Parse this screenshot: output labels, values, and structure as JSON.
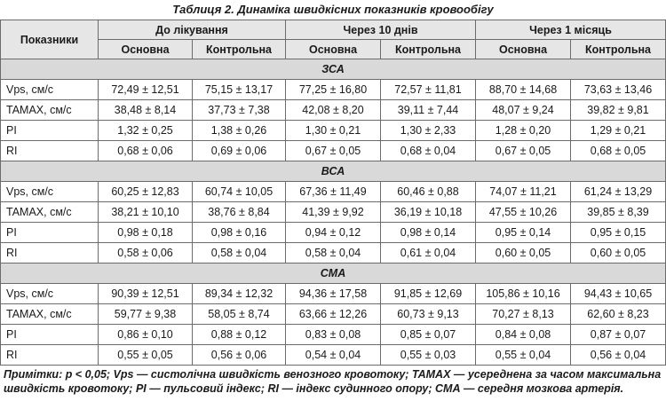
{
  "caption": "Таблиця 2. Динаміка швидкісних показників кровообігу",
  "header": {
    "indicator": "Показники",
    "periods": [
      "До лікування",
      "Через 10 днів",
      "Через 1 місяць"
    ],
    "groups": [
      "Основна",
      "Контрольна",
      "Основна",
      "Контрольна",
      "Основна",
      "Контрольна"
    ]
  },
  "sections": [
    {
      "title": "ЗСА",
      "rows": [
        {
          "label": "Vps, см/с",
          "values": [
            "72,49 ± 12,51",
            "75,15 ± 13,17",
            "77,25 ± 16,80",
            "72,57 ± 11,81",
            "88,70 ± 14,68",
            "73,63 ± 13,46"
          ]
        },
        {
          "label": "TAMAX, см/с",
          "values": [
            "38,48 ± 8,14",
            "37,73 ± 7,38",
            "42,08 ± 8,20",
            "39,11 ± 7,44",
            "48,07 ± 9,24",
            "39,82 ± 9,81"
          ]
        },
        {
          "label": "PI",
          "values": [
            "1,32 ± 0,25",
            "1,38 ± 0,26",
            "1,30 ± 0,21",
            "1,30 ± 2,33",
            "1,28 ± 0,20",
            "1,29 ± 0,21"
          ]
        },
        {
          "label": "RI",
          "values": [
            "0,68 ± 0,06",
            "0,69 ± 0,06",
            "0,67 ± 0,05",
            "0,68 ± 0,04",
            "0,67 ± 0,05",
            "0,68 ± 0,05"
          ]
        }
      ]
    },
    {
      "title": "ВСА",
      "rows": [
        {
          "label": "Vps, см/с",
          "values": [
            "60,25 ± 12,83",
            "60,74 ± 10,05",
            "67,36 ± 11,49",
            "60,46 ± 0,88",
            "74,07 ± 11,21",
            "61,24 ± 13,29"
          ]
        },
        {
          "label": "TAMAX, см/с",
          "values": [
            "38,21 ± 10,10",
            "38,76 ± 8,84",
            "41,39 ± 9,92",
            "36,19 ± 10,18",
            "47,55 ± 10,26",
            "39,85 ± 8,39"
          ]
        },
        {
          "label": "PI",
          "values": [
            "0,98 ± 0,18",
            "0,98 ± 0,16",
            "0,94 ± 0,12",
            "0,98 ± 0,14",
            "0,95 ± 0,14",
            "0,95 ± 0,15"
          ]
        },
        {
          "label": "RI",
          "values": [
            "0,58 ± 0,06",
            "0,58 ± 0,04",
            "0,58 ± 0,04",
            "0,61 ± 0,04",
            "0,60 ± 0,05",
            "0,60 ± 0,05"
          ]
        }
      ]
    },
    {
      "title": "СМА",
      "rows": [
        {
          "label": "Vps, см/с",
          "values": [
            "90,39 ± 12,51",
            "89,34 ± 12,32",
            "94,36 ± 17,58",
            "91,85 ± 12,69",
            "105,86 ± 10,16",
            "94,43 ± 10,65"
          ]
        },
        {
          "label": "TAMAX, см/с",
          "values": [
            "59,77 ± 9,38",
            "58,05 ± 8,74",
            "63,66 ± 12,26",
            "60,73 ± 9,13",
            "70,27 ± 8,13",
            "62,60 ± 8,23"
          ]
        },
        {
          "label": "PI",
          "values": [
            "0,86 ± 0,10",
            "0,88 ± 0,12",
            "0,83 ± 0,08",
            "0,85 ± 0,07",
            "0,84 ± 0,08",
            "0,87 ± 0,07"
          ]
        },
        {
          "label": "RI",
          "values": [
            "0,55 ± 0,05",
            "0,56 ± 0,06",
            "0,54 ± 0,04",
            "0,55 ± 0,03",
            "0,55 ± 0,04",
            "0,56 ± 0,04"
          ]
        }
      ]
    }
  ],
  "note": "Примітки: p < 0,05; Vps — систолічна швидкість венозного кровотоку; TAMAX — усереднена за часом максимальна швидкість кровотоку; PI — пульсовий індекс; RI — індекс судинного опору; СМА — середня мозкова артерія."
}
